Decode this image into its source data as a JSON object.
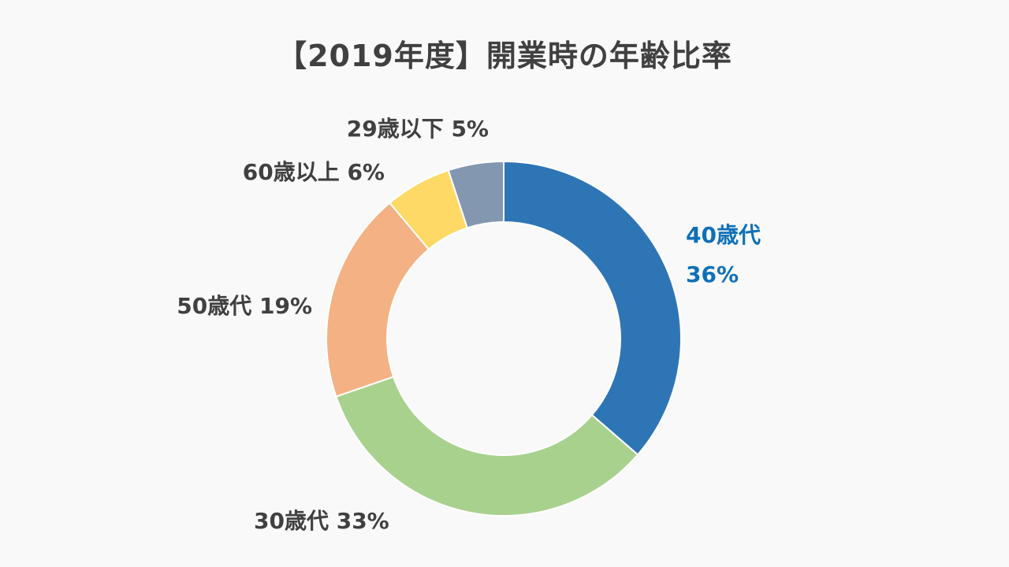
{
  "chart_data": {
    "type": "pie",
    "subtype": "donut",
    "title": "【2019年度】開業時の年齢比率",
    "slices": [
      {
        "label": "40歳代",
        "value": 36,
        "display": "36%",
        "color": "#2e75b6",
        "label_color": "#0f70b7"
      },
      {
        "label": "30歳代",
        "value": 33,
        "display": "33%",
        "color": "#a9d18e"
      },
      {
        "label": "50歳代",
        "value": 19,
        "display": "19%",
        "color": "#f4b183"
      },
      {
        "label": "60歳以上",
        "value": 6,
        "display": "6%",
        "color": "#ffd966"
      },
      {
        "label": "29歳以下",
        "value": 5,
        "display": "5%",
        "color": "#8497b0"
      }
    ],
    "legend": "none"
  }
}
